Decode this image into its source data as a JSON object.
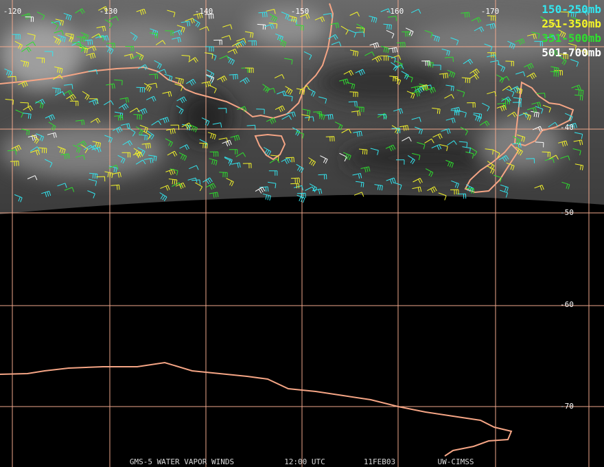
{
  "map": {
    "longitude_labels": [
      "-120",
      "-130",
      "-140",
      "-150",
      "-160",
      "-170"
    ],
    "latitude_labels": [
      "-40",
      "-50",
      "-60",
      "-70"
    ],
    "legend": [
      {
        "label": "150-250mb",
        "color": "#33e6f0"
      },
      {
        "label": "251-350mb",
        "color": "#f5f52a"
      },
      {
        "label": "351-500mb",
        "color": "#2ee02e"
      },
      {
        "label": "501-700mb",
        "color": "#ffffff"
      }
    ],
    "footer": [
      "GMS-5 WATER VAPOR WINDS",
      "12:00 UTC",
      "11FEB03",
      "UW-CIMSS"
    ]
  }
}
